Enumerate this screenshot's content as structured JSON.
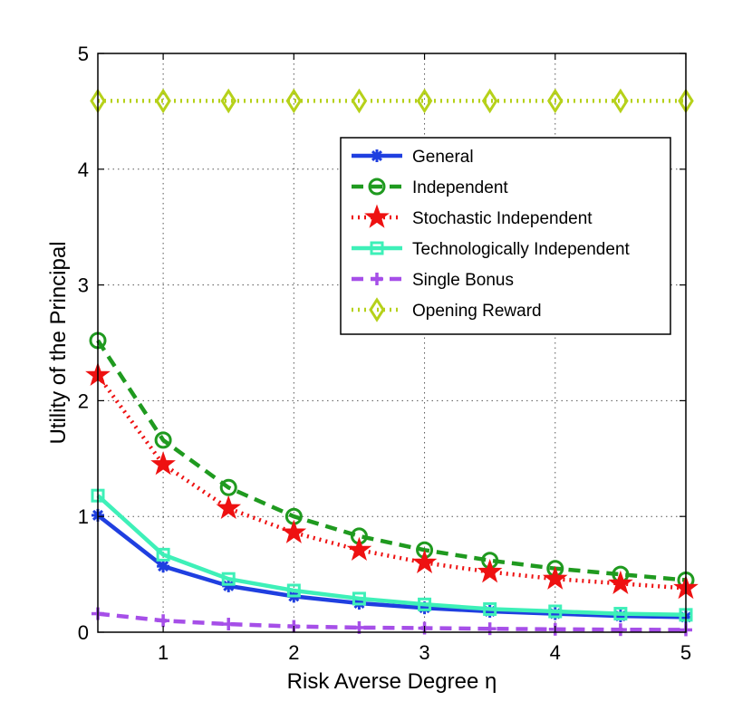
{
  "chart_data": {
    "type": "line",
    "title": "",
    "xlabel": "Risk Averse Degree η",
    "ylabel": "Utility of the Principal",
    "xlim": [
      0.5,
      5
    ],
    "ylim": [
      0,
      5
    ],
    "grid": true,
    "legend_position": "top-right",
    "xticks": [
      1,
      2,
      3,
      4,
      5
    ],
    "yticks": [
      0,
      1,
      2,
      3,
      4,
      5
    ],
    "x": [
      0.5,
      1,
      1.5,
      2,
      2.5,
      3,
      3.5,
      4,
      4.5,
      5
    ],
    "series": [
      {
        "name": "General",
        "color": "#1f3fe0",
        "dash": "solid",
        "marker": "asterisk",
        "values": [
          1.01,
          0.57,
          0.4,
          0.31,
          0.25,
          0.21,
          0.18,
          0.16,
          0.14,
          0.13
        ]
      },
      {
        "name": "Independent",
        "color": "#1f9a1f",
        "dash": "dashed",
        "marker": "circle",
        "values": [
          2.52,
          1.66,
          1.25,
          1.0,
          0.83,
          0.71,
          0.62,
          0.55,
          0.5,
          0.45
        ]
      },
      {
        "name": "Stochastic Independent",
        "color": "#ee1111",
        "dash": "dotted",
        "marker": "star",
        "values": [
          2.22,
          1.45,
          1.07,
          0.86,
          0.71,
          0.6,
          0.52,
          0.46,
          0.42,
          0.38
        ]
      },
      {
        "name": "Technologically Independent",
        "color": "#3ef0b8",
        "dash": "solid",
        "marker": "square",
        "values": [
          1.18,
          0.67,
          0.46,
          0.36,
          0.29,
          0.24,
          0.2,
          0.18,
          0.16,
          0.15
        ]
      },
      {
        "name": "Single Bonus",
        "color": "#a64fe8",
        "dash": "dashed",
        "marker": "plus",
        "values": [
          0.16,
          0.1,
          0.07,
          0.05,
          0.04,
          0.035,
          0.03,
          0.025,
          0.022,
          0.02
        ]
      },
      {
        "name": "Opening Reward",
        "color": "#b6d11a",
        "dash": "dotted",
        "marker": "diamond",
        "values": [
          4.59,
          4.59,
          4.59,
          4.59,
          4.59,
          4.59,
          4.59,
          4.59,
          4.59,
          4.59
        ]
      }
    ]
  }
}
